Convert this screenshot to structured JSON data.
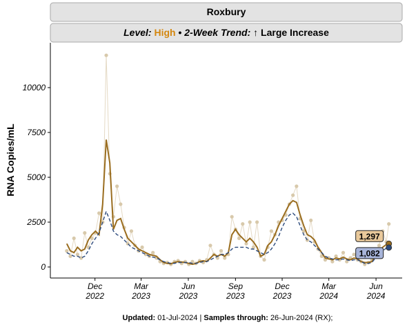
{
  "chart_data": {
    "type": "line",
    "strip": {
      "title": "Roxbury",
      "level_label": "Level:",
      "level": "High",
      "separator": "•",
      "trend_label": "2-Week Trend:",
      "trend": "↑ Large Increase"
    },
    "ylabel": "RNA Copies/mL",
    "footer": {
      "updated_label": "Updated:",
      "updated": "01-Jul-2024",
      "divider": "|",
      "samples_label": "Samples through:",
      "samples": "26-Jun-2024 (RX);"
    },
    "x": [
      "2022-10-07",
      "2022-10-14",
      "2022-10-21",
      "2022-10-28",
      "2022-11-04",
      "2022-11-11",
      "2022-11-18",
      "2022-11-25",
      "2022-12-02",
      "2022-12-09",
      "2022-12-16",
      "2022-12-23",
      "2022-12-30",
      "2023-01-06",
      "2023-01-13",
      "2023-01-20",
      "2023-01-27",
      "2023-02-03",
      "2023-02-10",
      "2023-02-17",
      "2023-02-24",
      "2023-03-03",
      "2023-03-10",
      "2023-03-17",
      "2023-03-24",
      "2023-03-31",
      "2023-04-07",
      "2023-04-14",
      "2023-04-21",
      "2023-04-28",
      "2023-05-05",
      "2023-05-12",
      "2023-05-19",
      "2023-05-26",
      "2023-06-02",
      "2023-06-09",
      "2023-06-16",
      "2023-06-23",
      "2023-06-30",
      "2023-07-07",
      "2023-07-14",
      "2023-07-21",
      "2023-07-28",
      "2023-08-04",
      "2023-08-11",
      "2023-08-18",
      "2023-08-25",
      "2023-09-01",
      "2023-09-08",
      "2023-09-15",
      "2023-09-22",
      "2023-09-29",
      "2023-10-06",
      "2023-10-13",
      "2023-10-20",
      "2023-10-27",
      "2023-11-03",
      "2023-11-10",
      "2023-11-17",
      "2023-11-24",
      "2023-12-01",
      "2023-12-08",
      "2023-12-15",
      "2023-12-22",
      "2023-12-29",
      "2024-01-05",
      "2024-01-12",
      "2024-01-19",
      "2024-01-26",
      "2024-02-02",
      "2024-02-09",
      "2024-02-16",
      "2024-02-23",
      "2024-03-01",
      "2024-03-08",
      "2024-03-15",
      "2024-03-22",
      "2024-03-29",
      "2024-04-05",
      "2024-04-12",
      "2024-04-19",
      "2024-04-26",
      "2024-05-03",
      "2024-05-10",
      "2024-05-17",
      "2024-05-24",
      "2024-05-31",
      "2024-06-07",
      "2024-06-14",
      "2024-06-21",
      "2024-06-26"
    ],
    "series": [
      {
        "style": "points",
        "color": "#d8c9ab",
        "values": [
          900,
          600,
          1600,
          700,
          500,
          1900,
          1100,
          1600,
          1900,
          3000,
          2500,
          11800,
          5200,
          2800,
          4500,
          3500,
          2200,
          1300,
          2000,
          1200,
          900,
          1100,
          700,
          600,
          800,
          500,
          300,
          200,
          250,
          150,
          300,
          350,
          200,
          300,
          150,
          300,
          200,
          350,
          250,
          400,
          1200,
          700,
          500,
          900,
          500,
          700,
          2800,
          2100,
          1600,
          2400,
          1300,
          2500,
          1100,
          2500,
          600,
          400,
          1100,
          2000,
          1800,
          2500,
          2600,
          2900,
          3500,
          4000,
          4500,
          2700,
          2000,
          1500,
          2600,
          1400,
          1000,
          600,
          400,
          500,
          300,
          600,
          400,
          800,
          300,
          500,
          700,
          400,
          300,
          150,
          250,
          400,
          900,
          1200,
          2000,
          1400,
          2400
        ]
      },
      {
        "style": "solid",
        "color": "#9a6d1f",
        "values": [
          1300,
          900,
          800,
          1100,
          900,
          1000,
          1500,
          1800,
          2000,
          1800,
          3500,
          7100,
          5800,
          2100,
          2600,
          2700,
          2100,
          1600,
          1400,
          1200,
          1000,
          900,
          800,
          700,
          650,
          600,
          400,
          250,
          200,
          180,
          250,
          300,
          280,
          250,
          200,
          150,
          200,
          300,
          350,
          300,
          500,
          700,
          600,
          700,
          600,
          800,
          1800,
          2100,
          1800,
          1600,
          1400,
          1600,
          1400,
          1100,
          600,
          700,
          1200,
          1400,
          1800,
          2300,
          2700,
          3100,
          3500,
          3700,
          3600,
          2900,
          2300,
          1800,
          1700,
          1500,
          1100,
          800,
          500,
          450,
          400,
          500,
          450,
          550,
          450,
          400,
          500,
          450,
          300,
          250,
          250,
          300,
          600,
          800,
          1100,
          1250,
          1297
        ],
        "end_label": "1,297",
        "label_fill": "#e9c99b"
      },
      {
        "style": "dashed",
        "color": "#2c4a7c",
        "values": [
          800,
          700,
          600,
          600,
          500,
          600,
          900,
          1300,
          1600,
          1900,
          2500,
          3100,
          2600,
          2000,
          1800,
          1700,
          1500,
          1300,
          1100,
          1000,
          900,
          800,
          700,
          600,
          550,
          500,
          400,
          300,
          250,
          200,
          200,
          250,
          250,
          250,
          250,
          200,
          200,
          250,
          300,
          300,
          400,
          500,
          600,
          700,
          700,
          800,
          1000,
          1100,
          1100,
          1100,
          1100,
          1000,
          1000,
          900,
          800,
          700,
          800,
          1000,
          1300,
          1700,
          2200,
          2600,
          2900,
          3000,
          2800,
          2300,
          1800,
          1500,
          1400,
          1200,
          1000,
          800,
          600,
          500,
          450,
          400,
          400,
          450,
          400,
          350,
          400,
          400,
          300,
          200,
          200,
          250,
          500,
          700,
          900,
          1050,
          1082
        ],
        "end_label": "1,082",
        "label_fill": "#a8b5da"
      }
    ],
    "ylim": [
      -615,
      12500
    ],
    "yticks": [
      0,
      2500,
      5000,
      7500,
      10000
    ],
    "xlim": [
      "2022-09-05",
      "2024-07-22"
    ],
    "xticks": [
      {
        "value": "2022-12-01",
        "label": [
          "Dec",
          "2022"
        ]
      },
      {
        "value": "2023-03-01",
        "label": [
          "Mar",
          "2023"
        ]
      },
      {
        "value": "2023-06-01",
        "label": [
          "Jun",
          "2023"
        ]
      },
      {
        "value": "2023-09-01",
        "label": [
          "Sep",
          "2023"
        ]
      },
      {
        "value": "2023-12-01",
        "label": [
          "Dec",
          "2023"
        ]
      },
      {
        "value": "2024-03-01",
        "label": [
          "Mar",
          "2024"
        ]
      },
      {
        "value": "2024-06-01",
        "label": [
          "Jun",
          "2024"
        ]
      }
    ]
  }
}
